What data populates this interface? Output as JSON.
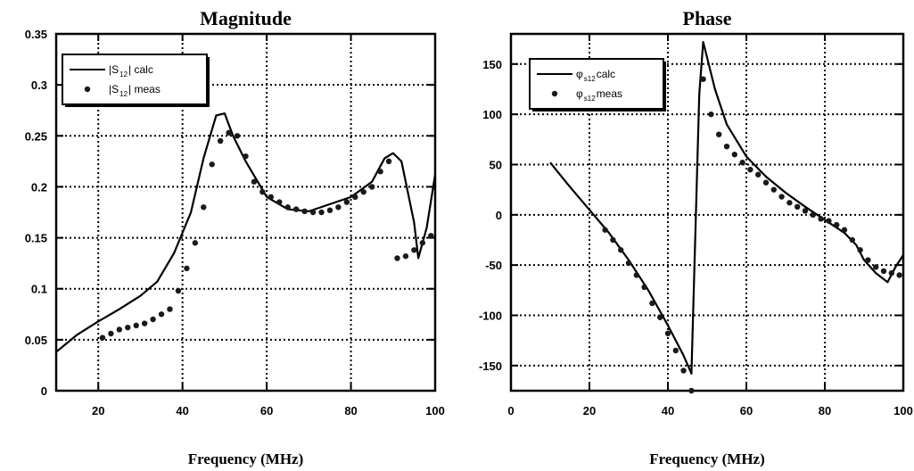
{
  "chart_data": [
    {
      "type": "line",
      "title": "Magnitude",
      "xlabel": "Frequency (MHz)",
      "ylabel": "",
      "xlim": [
        10,
        100
      ],
      "ylim": [
        0,
        0.35
      ],
      "xticks": [
        20,
        40,
        60,
        80,
        100
      ],
      "xtick_labels": [
        "20",
        "40",
        "60",
        "80",
        "100"
      ],
      "yticks": [
        0,
        0.05,
        0.1,
        0.15,
        0.2,
        0.25,
        0.3,
        0.35
      ],
      "ytick_labels": [
        "0",
        "0.05",
        "0.1",
        "0.15",
        "0.2",
        "0.25",
        "0.3",
        "0.35"
      ],
      "grid": true,
      "legend": {
        "placement": "top-left",
        "entries": [
          {
            "prefix": "|S",
            "sub": "12",
            "suffix": "| calc",
            "marker": "line"
          },
          {
            "prefix": "|S",
            "sub": "12",
            "suffix": "|  meas",
            "marker": "dot"
          }
        ]
      },
      "series": [
        {
          "style": "line",
          "x": [
            10,
            15,
            20,
            25,
            30,
            34,
            38,
            42,
            45,
            48,
            50,
            52,
            55,
            60,
            65,
            70,
            75,
            80,
            85,
            88,
            90,
            92,
            95,
            96,
            98,
            100
          ],
          "y": [
            0.038,
            0.055,
            0.068,
            0.08,
            0.093,
            0.107,
            0.135,
            0.175,
            0.228,
            0.27,
            0.272,
            0.25,
            0.225,
            0.19,
            0.178,
            0.176,
            0.183,
            0.19,
            0.205,
            0.228,
            0.233,
            0.225,
            0.165,
            0.13,
            0.16,
            0.212
          ]
        },
        {
          "style": "dot",
          "x": [
            21,
            23,
            25,
            27,
            29,
            31,
            33,
            35,
            37,
            39,
            41,
            43,
            45,
            47,
            49,
            51,
            53,
            55,
            57,
            59,
            61,
            63,
            65,
            67,
            69,
            71,
            73,
            75,
            77,
            79,
            81,
            83,
            85,
            87,
            89,
            91,
            93,
            95,
            97,
            99
          ],
          "y": [
            0.052,
            0.056,
            0.06,
            0.062,
            0.064,
            0.066,
            0.07,
            0.075,
            0.08,
            0.098,
            0.12,
            0.145,
            0.18,
            0.222,
            0.245,
            0.253,
            0.25,
            0.23,
            0.205,
            0.195,
            0.19,
            0.185,
            0.18,
            0.178,
            0.176,
            0.175,
            0.175,
            0.177,
            0.18,
            0.185,
            0.19,
            0.195,
            0.2,
            0.215,
            0.225,
            0.13,
            0.132,
            0.138,
            0.145,
            0.152
          ]
        }
      ]
    },
    {
      "type": "line",
      "title": "Phase",
      "xlabel": "Frequency (MHz)",
      "ylabel": "",
      "xlim": [
        0,
        100
      ],
      "ylim": [
        -175,
        180
      ],
      "xticks": [
        0,
        20,
        40,
        60,
        80,
        100
      ],
      "xtick_labels": [
        "0",
        "20",
        "40",
        "60",
        "80",
        "100"
      ],
      "yticks": [
        -150,
        -100,
        -50,
        0,
        50,
        100,
        150
      ],
      "ytick_labels": [
        "-150",
        "-100",
        "-50",
        "0",
        "50",
        "100",
        "150"
      ],
      "grid": true,
      "legend": {
        "placement": "top-left",
        "entries": [
          {
            "prefix": "φ",
            "sub": "s12",
            "suffix": " calc",
            "marker": "line"
          },
          {
            "prefix": "φ",
            "sub": "s12",
            "suffix": "  meas",
            "marker": "dot"
          }
        ]
      },
      "series": [
        {
          "style": "line",
          "x": [
            10,
            15,
            20,
            25,
            30,
            35,
            40,
            44,
            46,
            48,
            49,
            52,
            55,
            60,
            65,
            70,
            75,
            80,
            85,
            88,
            90,
            93,
            96,
            98,
            100
          ],
          "y": [
            52,
            28,
            5,
            -18,
            -45,
            -75,
            -110,
            -140,
            -158,
            120,
            172,
            125,
            90,
            58,
            38,
            22,
            8,
            -5,
            -18,
            -30,
            -45,
            -58,
            -67,
            -52,
            -40
          ]
        },
        {
          "style": "dot",
          "x": [
            24,
            26,
            28,
            30,
            32,
            34,
            36,
            38,
            40,
            42,
            44,
            46,
            49,
            51,
            53,
            55,
            57,
            59,
            61,
            63,
            65,
            67,
            69,
            71,
            73,
            75,
            77,
            79,
            81,
            83,
            85,
            87,
            89,
            91,
            93,
            95,
            97,
            99
          ],
          "y": [
            -15,
            -25,
            -35,
            -48,
            -60,
            -72,
            -88,
            -102,
            -118,
            -135,
            -155,
            -175,
            135,
            100,
            80,
            68,
            60,
            52,
            45,
            40,
            32,
            25,
            18,
            12,
            8,
            4,
            0,
            -4,
            -6,
            -10,
            -15,
            -25,
            -35,
            -45,
            -52,
            -56,
            -58,
            -60
          ]
        }
      ]
    }
  ]
}
